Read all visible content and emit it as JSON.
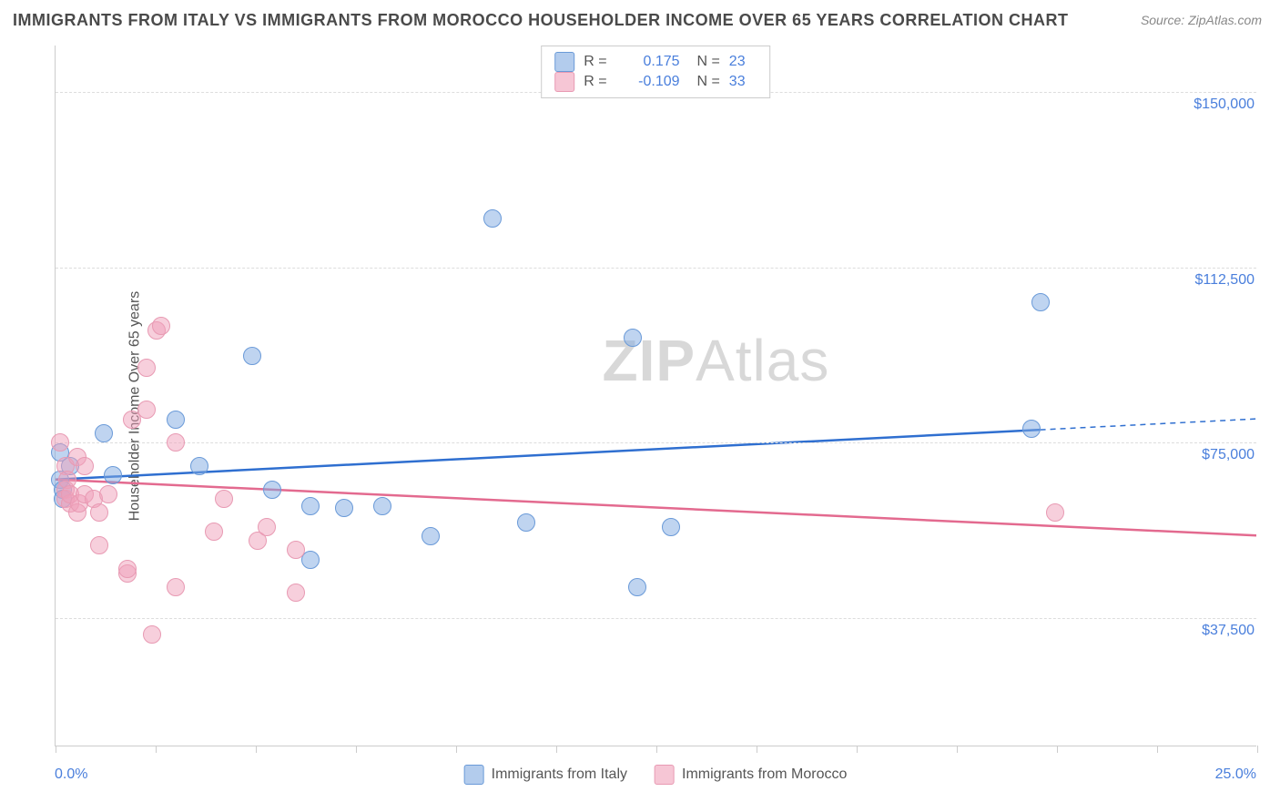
{
  "title": "IMMIGRANTS FROM ITALY VS IMMIGRANTS FROM MOROCCO HOUSEHOLDER INCOME OVER 65 YEARS CORRELATION CHART",
  "source": "Source: ZipAtlas.com",
  "ylabel": "Householder Income Over 65 years",
  "watermark_bold": "ZIP",
  "watermark_rest": "Atlas",
  "chart": {
    "type": "scatter",
    "xlim": [
      0,
      25
    ],
    "ylim": [
      10000,
      160000
    ],
    "x_min_label": "0.0%",
    "x_max_label": "25.0%",
    "y_ticks": [
      37500,
      75000,
      112500,
      150000
    ],
    "y_tick_labels": [
      "$37,500",
      "$75,000",
      "$112,500",
      "$150,000"
    ],
    "x_tick_positions": [
      0,
      2.08,
      4.17,
      6.25,
      8.33,
      10.42,
      12.5,
      14.58,
      16.67,
      18.75,
      20.83,
      22.92,
      25
    ],
    "grid_color": "#dddddd",
    "axis_color": "#cccccc",
    "background_color": "#ffffff",
    "marker_size": 20,
    "series": [
      {
        "name": "Immigrants from Italy",
        "key": "italy",
        "color_fill": "rgba(128,170,225,0.5)",
        "color_stroke": "#6a9ad8",
        "r": "0.175",
        "n": "23",
        "trend": {
          "color": "#2f6fd0",
          "y_start": 67000,
          "y_end": 80000,
          "dash_from_x": 20.5
        },
        "points": [
          [
            0.1,
            73000
          ],
          [
            0.1,
            67000
          ],
          [
            0.15,
            65000
          ],
          [
            0.15,
            63000
          ],
          [
            0.3,
            70000
          ],
          [
            1.0,
            77000
          ],
          [
            1.2,
            68000
          ],
          [
            2.5,
            80000
          ],
          [
            3.0,
            70000
          ],
          [
            4.1,
            93500
          ],
          [
            4.5,
            65000
          ],
          [
            5.3,
            61500
          ],
          [
            5.3,
            50000
          ],
          [
            6.0,
            61000
          ],
          [
            6.8,
            61500
          ],
          [
            7.8,
            55000
          ],
          [
            9.1,
            123000
          ],
          [
            9.8,
            58000
          ],
          [
            12.0,
            97500
          ],
          [
            12.8,
            57000
          ],
          [
            12.1,
            44000
          ],
          [
            20.3,
            78000
          ],
          [
            20.5,
            105000
          ]
        ]
      },
      {
        "name": "Immigrants from Morocco",
        "key": "morocco",
        "color_fill": "rgba(240,160,185,0.5)",
        "color_stroke": "#e89ab3",
        "r": "-0.109",
        "n": "33",
        "trend": {
          "color": "#e36a8f",
          "y_start": 67000,
          "y_end": 55000
        },
        "points": [
          [
            0.1,
            75000
          ],
          [
            0.2,
            70000
          ],
          [
            0.2,
            65000
          ],
          [
            0.2,
            63000
          ],
          [
            0.25,
            67000
          ],
          [
            0.3,
            62000
          ],
          [
            0.3,
            64000
          ],
          [
            0.45,
            72000
          ],
          [
            0.45,
            60000
          ],
          [
            0.5,
            62000
          ],
          [
            0.6,
            64000
          ],
          [
            0.6,
            70000
          ],
          [
            0.8,
            63000
          ],
          [
            0.9,
            60000
          ],
          [
            0.9,
            53000
          ],
          [
            1.1,
            64000
          ],
          [
            1.5,
            47000
          ],
          [
            1.5,
            48000
          ],
          [
            1.6,
            80000
          ],
          [
            1.9,
            91000
          ],
          [
            1.9,
            82000
          ],
          [
            2.0,
            34000
          ],
          [
            2.1,
            99000
          ],
          [
            2.2,
            100000
          ],
          [
            2.5,
            75000
          ],
          [
            2.5,
            44000
          ],
          [
            3.3,
            56000
          ],
          [
            3.5,
            63000
          ],
          [
            4.2,
            54000
          ],
          [
            4.4,
            57000
          ],
          [
            5.0,
            43000
          ],
          [
            5.0,
            52000
          ],
          [
            20.8,
            60000
          ]
        ]
      }
    ],
    "legend_bottom": [
      {
        "key": "italy",
        "label": "Immigrants from Italy"
      },
      {
        "key": "morocco",
        "label": "Immigrants from Morocco"
      }
    ]
  }
}
